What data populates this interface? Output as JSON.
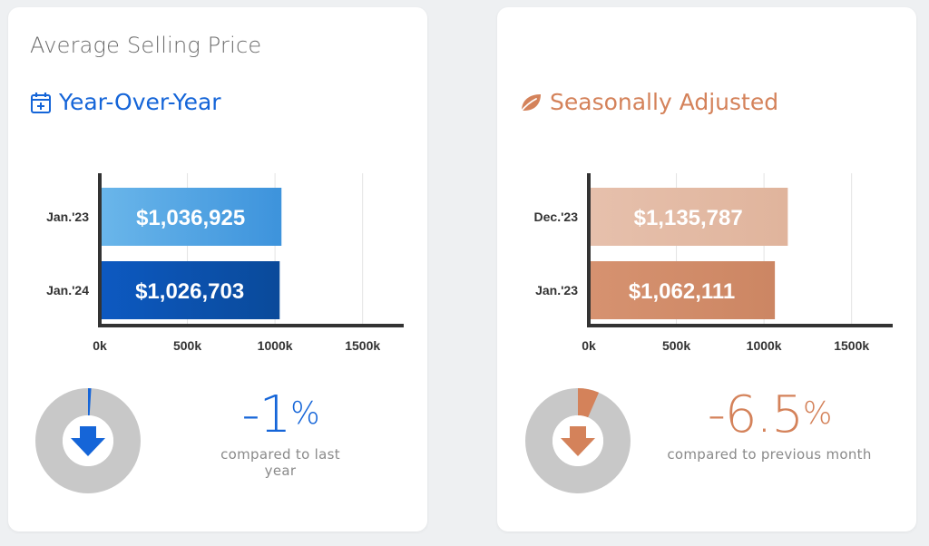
{
  "colors": {
    "blue": "#1565d8",
    "orange": "#d4825a",
    "donut_track": "#c8c8c8",
    "axis": "#333333"
  },
  "left_card": {
    "title": "Average Selling Price",
    "subtitle": "Year-Over-Year",
    "subtitle_icon": "calendar-plus-icon",
    "change": {
      "value": "-1",
      "unit": "%",
      "caption": "compared to last year"
    },
    "donut_fraction": 0.01,
    "donut_icon": "arrow-down-icon"
  },
  "right_card": {
    "subtitle": "Seasonally Adjusted",
    "subtitle_icon": "leaf-icon",
    "change": {
      "value": "-6.5",
      "unit": "%",
      "caption": "compared to previous month"
    },
    "donut_fraction": 0.065,
    "donut_icon": "arrow-down-icon"
  },
  "chart_data": [
    {
      "type": "bar",
      "orientation": "horizontal",
      "categories": [
        "Jan.'23",
        "Jan.'24"
      ],
      "values": [
        1036925,
        1026703
      ],
      "value_labels": [
        "$1,036,925",
        "$1,026,703"
      ],
      "xlim": [
        0,
        1600000
      ],
      "xticks": [
        0,
        500000,
        1000000,
        1500000
      ],
      "xtick_labels": [
        "0k",
        "500k",
        "1000k",
        "1500k"
      ],
      "grid": true,
      "bar_colors": [
        [
          "#6ab6ea",
          "#3d93dc"
        ],
        [
          "#0d59c1",
          "#0a4a9a"
        ]
      ]
    },
    {
      "type": "bar",
      "orientation": "horizontal",
      "categories": [
        "Dec.'23",
        "Jan.'23"
      ],
      "values": [
        1135787,
        1062111
      ],
      "value_labels": [
        "$1,135,787",
        "$1,062,111"
      ],
      "xlim": [
        0,
        1600000
      ],
      "xticks": [
        0,
        500000,
        1000000,
        1500000
      ],
      "xtick_labels": [
        "0k",
        "500k",
        "1000k",
        "1500k"
      ],
      "grid": true,
      "bar_colors": [
        [
          "#e6c0ac",
          "#e0b49c"
        ],
        [
          "#d69270",
          "#cc8663"
        ]
      ]
    }
  ]
}
